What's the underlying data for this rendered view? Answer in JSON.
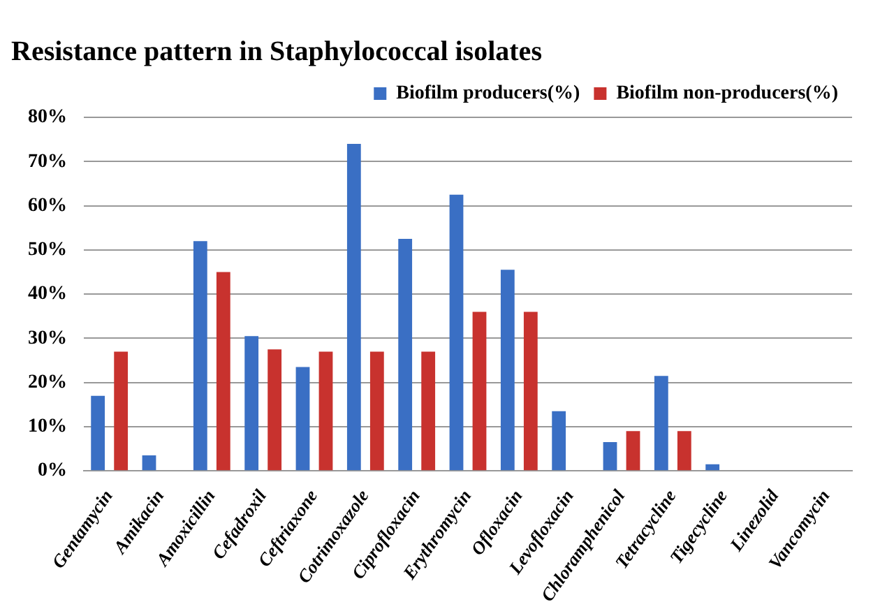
{
  "chart_data": {
    "type": "bar",
    "title": "Resistance pattern in Staphylococcal isolates",
    "categories": [
      "Gentamycin",
      "Amikacin",
      "Amoxicillin",
      "Cefadroxil",
      "Ceftriaxone",
      "Cotrimoxazole",
      "Ciprofloxacin",
      "Erythromycin",
      "Ofloxacin",
      "Levofloxacin",
      "Chloramphenicol",
      "Tetracycline",
      "Tigecycline",
      "Linezolid",
      "Vancomycin"
    ],
    "series": [
      {
        "name": "Biofilm producers(%)",
        "color": "#3a6fc4",
        "values": [
          17,
          3.5,
          52,
          30.5,
          23.5,
          74,
          52.5,
          62.5,
          45.5,
          13.5,
          6.5,
          21.5,
          1.5,
          0,
          0
        ]
      },
      {
        "name": "Biofilm non-producers(%)",
        "color": "#c8322e",
        "values": [
          27,
          0,
          45,
          27.5,
          27,
          27,
          27,
          36,
          36,
          0,
          9,
          9,
          0,
          0,
          0
        ]
      }
    ],
    "ylim": [
      0,
      80
    ],
    "yticks": [
      {
        "value": 0,
        "label": "0%"
      },
      {
        "value": 10,
        "label": "10%"
      },
      {
        "value": 20,
        "label": "20%"
      },
      {
        "value": 30,
        "label": "30%"
      },
      {
        "value": 40,
        "label": "40%"
      },
      {
        "value": 50,
        "label": "50%"
      },
      {
        "value": 60,
        "label": "60%"
      },
      {
        "value": 70,
        "label": "70%"
      },
      {
        "value": 80,
        "label": "80%"
      }
    ],
    "grid": "y",
    "legend": "top right"
  }
}
